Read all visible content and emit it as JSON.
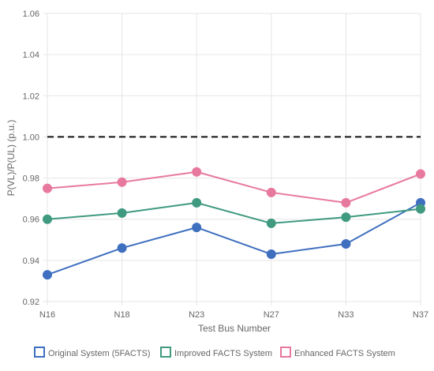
{
  "chart_data": {
    "type": "line",
    "x_categories": [
      "N16",
      "N18",
      "N23",
      "N27",
      "N33",
      "N37"
    ],
    "xlabel": "Test Bus Number",
    "ylabel": "P(VL)/P(UL) (p.u.)",
    "ylim": [
      0.92,
      1.06
    ],
    "yticks": [
      0.92,
      0.94,
      0.96,
      0.98,
      1.0,
      1.02,
      1.04,
      1.06
    ],
    "ytick_labels": [
      "0.92",
      "0.94",
      "0.96",
      "0.98",
      "1.00",
      "1.02",
      "1.04",
      "1.06"
    ],
    "grid": true,
    "reference_line": {
      "y": 1.0,
      "style": "dashed",
      "color": "#111111"
    },
    "legend_position": "bottom",
    "series": [
      {
        "name": "Original System (5FACTS)",
        "color": "#3f6fbf",
        "values": [
          0.933,
          0.946,
          0.956,
          0.943,
          0.948,
          0.968
        ]
      },
      {
        "name": "Improved FACTS System",
        "color": "#3f9a80",
        "values": [
          0.96,
          0.963,
          0.968,
          0.958,
          0.961,
          0.965
        ]
      },
      {
        "name": "Enhanced FACTS System",
        "color": "#e8799e",
        "values": [
          0.975,
          0.978,
          0.983,
          0.973,
          0.968,
          0.982
        ]
      }
    ]
  }
}
